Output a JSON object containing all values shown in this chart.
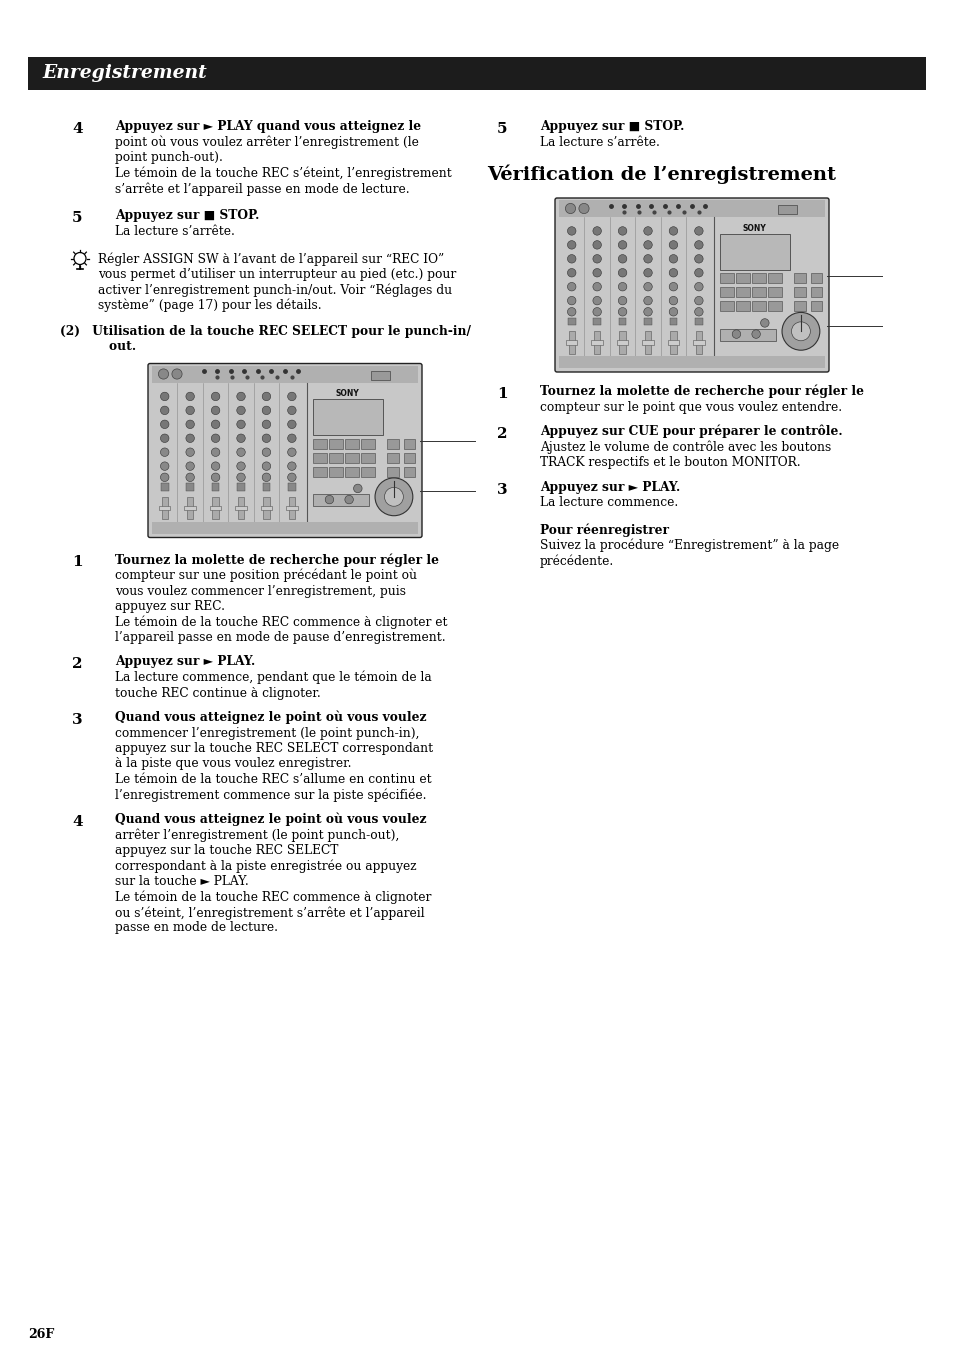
{
  "page_bg": "#ffffff",
  "header_bg": "#1c1c1c",
  "header_text": "Enregistrement",
  "header_text_color": "#ffffff",
  "page_number": "26F",
  "left_steps": [
    {
      "num": "4",
      "bold": "Appuyez sur ► PLAY quand vous atteignez le",
      "normal": [
        "point où vous voulez arrêter l’enregistrement (le",
        "point punch-out).",
        "Le témoin de la touche REC s’éteint, l’enregistrement",
        "s’arrête et l’appareil passe en mode de lecture."
      ]
    },
    {
      "num": "5",
      "bold": "Appuyez sur ■ STOP.",
      "normal": [
        "La lecture s’arrête."
      ]
    }
  ],
  "tip_lines": [
    "Régler ASSIGN SW à l’avant de l’appareil sur “REC IO”",
    "vous permet d’utiliser un interrupteur au pied (etc.) pour",
    "activer l’enregistrement punch-in/out. Voir “Réglages du",
    "système” (page 17) pour les détails."
  ],
  "subhead_line1": "(2) Utilisation de la touche REC SELECT pour le punch-in/",
  "subhead_line2": "    out.",
  "left_steps2": [
    {
      "num": "1",
      "bold": "Tournez la molette de recherche pour régler le",
      "normal": [
        "compteur sur une position précédant le point où",
        "vous voulez commencer l’enregistrement, puis",
        "appuyez sur REC.",
        "Le témoin de la touche REC commence à clignoter et",
        "l’appareil passe en mode de pause d’enregistrement."
      ]
    },
    {
      "num": "2",
      "bold": "Appuyez sur ► PLAY.",
      "normal": [
        "La lecture commence, pendant que le témoin de la",
        "touche REC continue à clignoter."
      ]
    },
    {
      "num": "3",
      "bold": "Quand vous atteignez le point où vous voulez",
      "normal": [
        "commencer l’enregistrement (le point punch-in),",
        "appuyez sur la touche REC SELECT correspondant",
        "à la piste que vous voulez enregistrer.",
        "Le témoin de la touche REC s’allume en continu et",
        "l’enregistrement commence sur la piste spécifiée."
      ]
    },
    {
      "num": "4",
      "bold": "Quand vous atteignez le point où vous voulez",
      "normal": [
        "arrêter l’enregistrement (le point punch-out),",
        "appuyez sur la touche REC SELECT",
        "correspondant à la piste enregistrée ou appuyez",
        "sur la touche ► PLAY.",
        "Le témoin de la touche REC commence à clignoter",
        "ou s’éteint, l’enregistrement s’arrête et l’appareil",
        "passe en mode de lecture."
      ]
    }
  ],
  "right_step5_bold": "Appuyez sur ■ STOP.",
  "right_step5_normal": [
    "La lecture s’arrête."
  ],
  "section_title": "Vérification de l’enregistrement",
  "right_steps": [
    {
      "num": "1",
      "bold": "Tournez la molette de recherche pour régler le",
      "normal": [
        "compteur sur le point que vous voulez entendre."
      ]
    },
    {
      "num": "2",
      "bold": "Appuyez sur CUE pour préparer le contrôle.",
      "normal": [
        "Ajustez le volume de contrôle avec les boutons",
        "TRACK respectifs et le bouton MONITOR."
      ]
    },
    {
      "num": "3",
      "bold": "Appuyez sur ► PLAY.",
      "normal": [
        "La lecture commence."
      ]
    }
  ],
  "pour_reen": "Pour réenregistrer",
  "pour_reen_lines": [
    "Suivez la procédure “Enregistrement” à la page",
    "précédente."
  ]
}
